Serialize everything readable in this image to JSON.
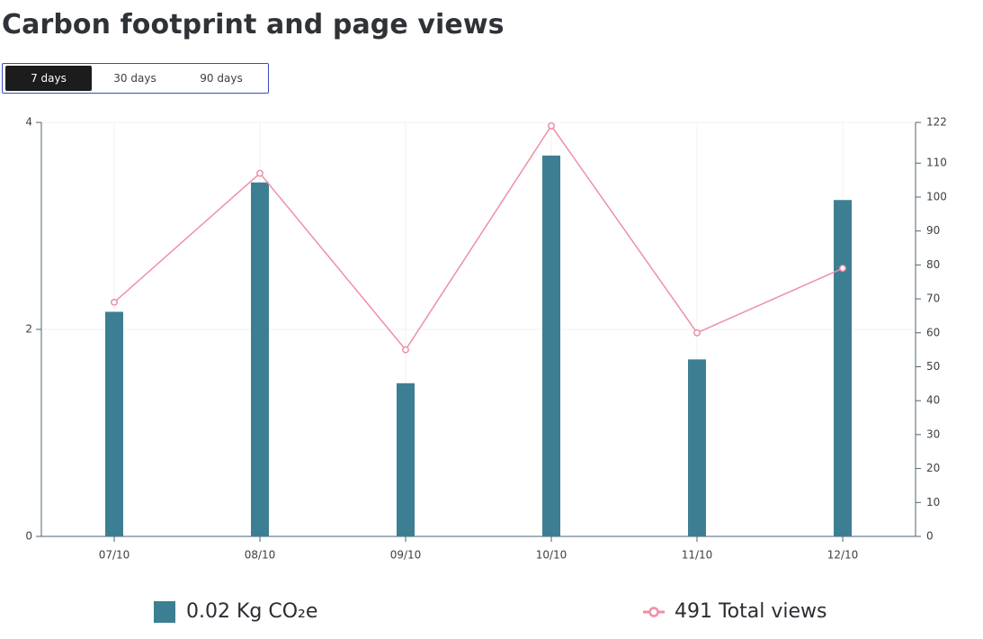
{
  "page": {
    "title": "Carbon footprint and page views"
  },
  "range_toggle": {
    "options": [
      "7 days",
      "30 days",
      "90 days"
    ],
    "selected": "7 days"
  },
  "legend": {
    "bar_label": "0.02 Kg CO₂e",
    "line_label": "491 Total views"
  },
  "colors": {
    "bar": "#3d7f92",
    "line": "#ee8fa6",
    "axis": "#4d6670",
    "grid": "#f0f0f0"
  },
  "chart_data": {
    "type": "bar",
    "categories": [
      "07/10",
      "08/10",
      "09/10",
      "10/10",
      "11/10",
      "12/10"
    ],
    "series": [
      {
        "type": "bar",
        "axis": "left",
        "values": [
          2.17,
          3.42,
          1.48,
          3.68,
          1.71,
          3.25
        ]
      },
      {
        "type": "line",
        "axis": "right",
        "values": [
          69,
          107,
          55,
          121,
          60,
          79
        ]
      }
    ],
    "y_left": {
      "min": 0,
      "max": 4,
      "ticks": [
        0,
        2,
        4
      ]
    },
    "y_right": {
      "min": 0,
      "max": 122,
      "ticks": [
        0,
        10,
        20,
        30,
        40,
        50,
        60,
        70,
        80,
        90,
        100,
        110,
        122
      ]
    },
    "grid": true
  }
}
